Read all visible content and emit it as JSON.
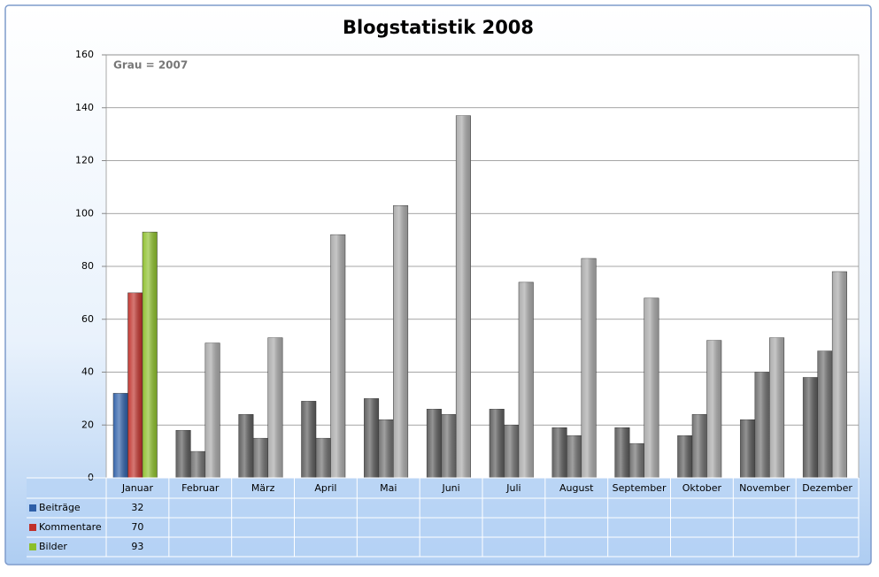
{
  "chart_data": {
    "type": "bar",
    "title": "Blogstatistik 2008",
    "annotation": "Grau = 2007",
    "categories": [
      "Januar",
      "Februar",
      "März",
      "April",
      "Mai",
      "Juni",
      "Juli",
      "August",
      "September",
      "Oktober",
      "November",
      "Dezember"
    ],
    "series": [
      {
        "name": "Beiträge",
        "color": "#2e5fa8",
        "values": [
          32,
          null,
          null,
          null,
          null,
          null,
          null,
          null,
          null,
          null,
          null,
          null
        ]
      },
      {
        "name": "Kommentare",
        "color": "#c0302a",
        "values": [
          70,
          null,
          null,
          null,
          null,
          null,
          null,
          null,
          null,
          null,
          null,
          null
        ]
      },
      {
        "name": "Bilder",
        "color": "#8cbf2a",
        "values": [
          93,
          null,
          null,
          null,
          null,
          null,
          null,
          null,
          null,
          null,
          null,
          null
        ]
      }
    ],
    "comparison_series": [
      {
        "color": "#5a5a5a",
        "values": [
          null,
          18,
          24,
          29,
          30,
          26,
          26,
          19,
          19,
          16,
          22,
          38
        ]
      },
      {
        "color": "#6e6e6e",
        "values": [
          null,
          10,
          15,
          15,
          22,
          24,
          20,
          16,
          13,
          24,
          40,
          48
        ]
      },
      {
        "color": "#a8a8a8",
        "values": [
          null,
          51,
          53,
          92,
          103,
          137,
          74,
          83,
          68,
          52,
          53,
          78
        ]
      }
    ],
    "ylim": [
      0,
      160
    ],
    "yticks": [
      0,
      20,
      40,
      60,
      80,
      100,
      120,
      140,
      160
    ],
    "grid": true,
    "data_table": true
  }
}
